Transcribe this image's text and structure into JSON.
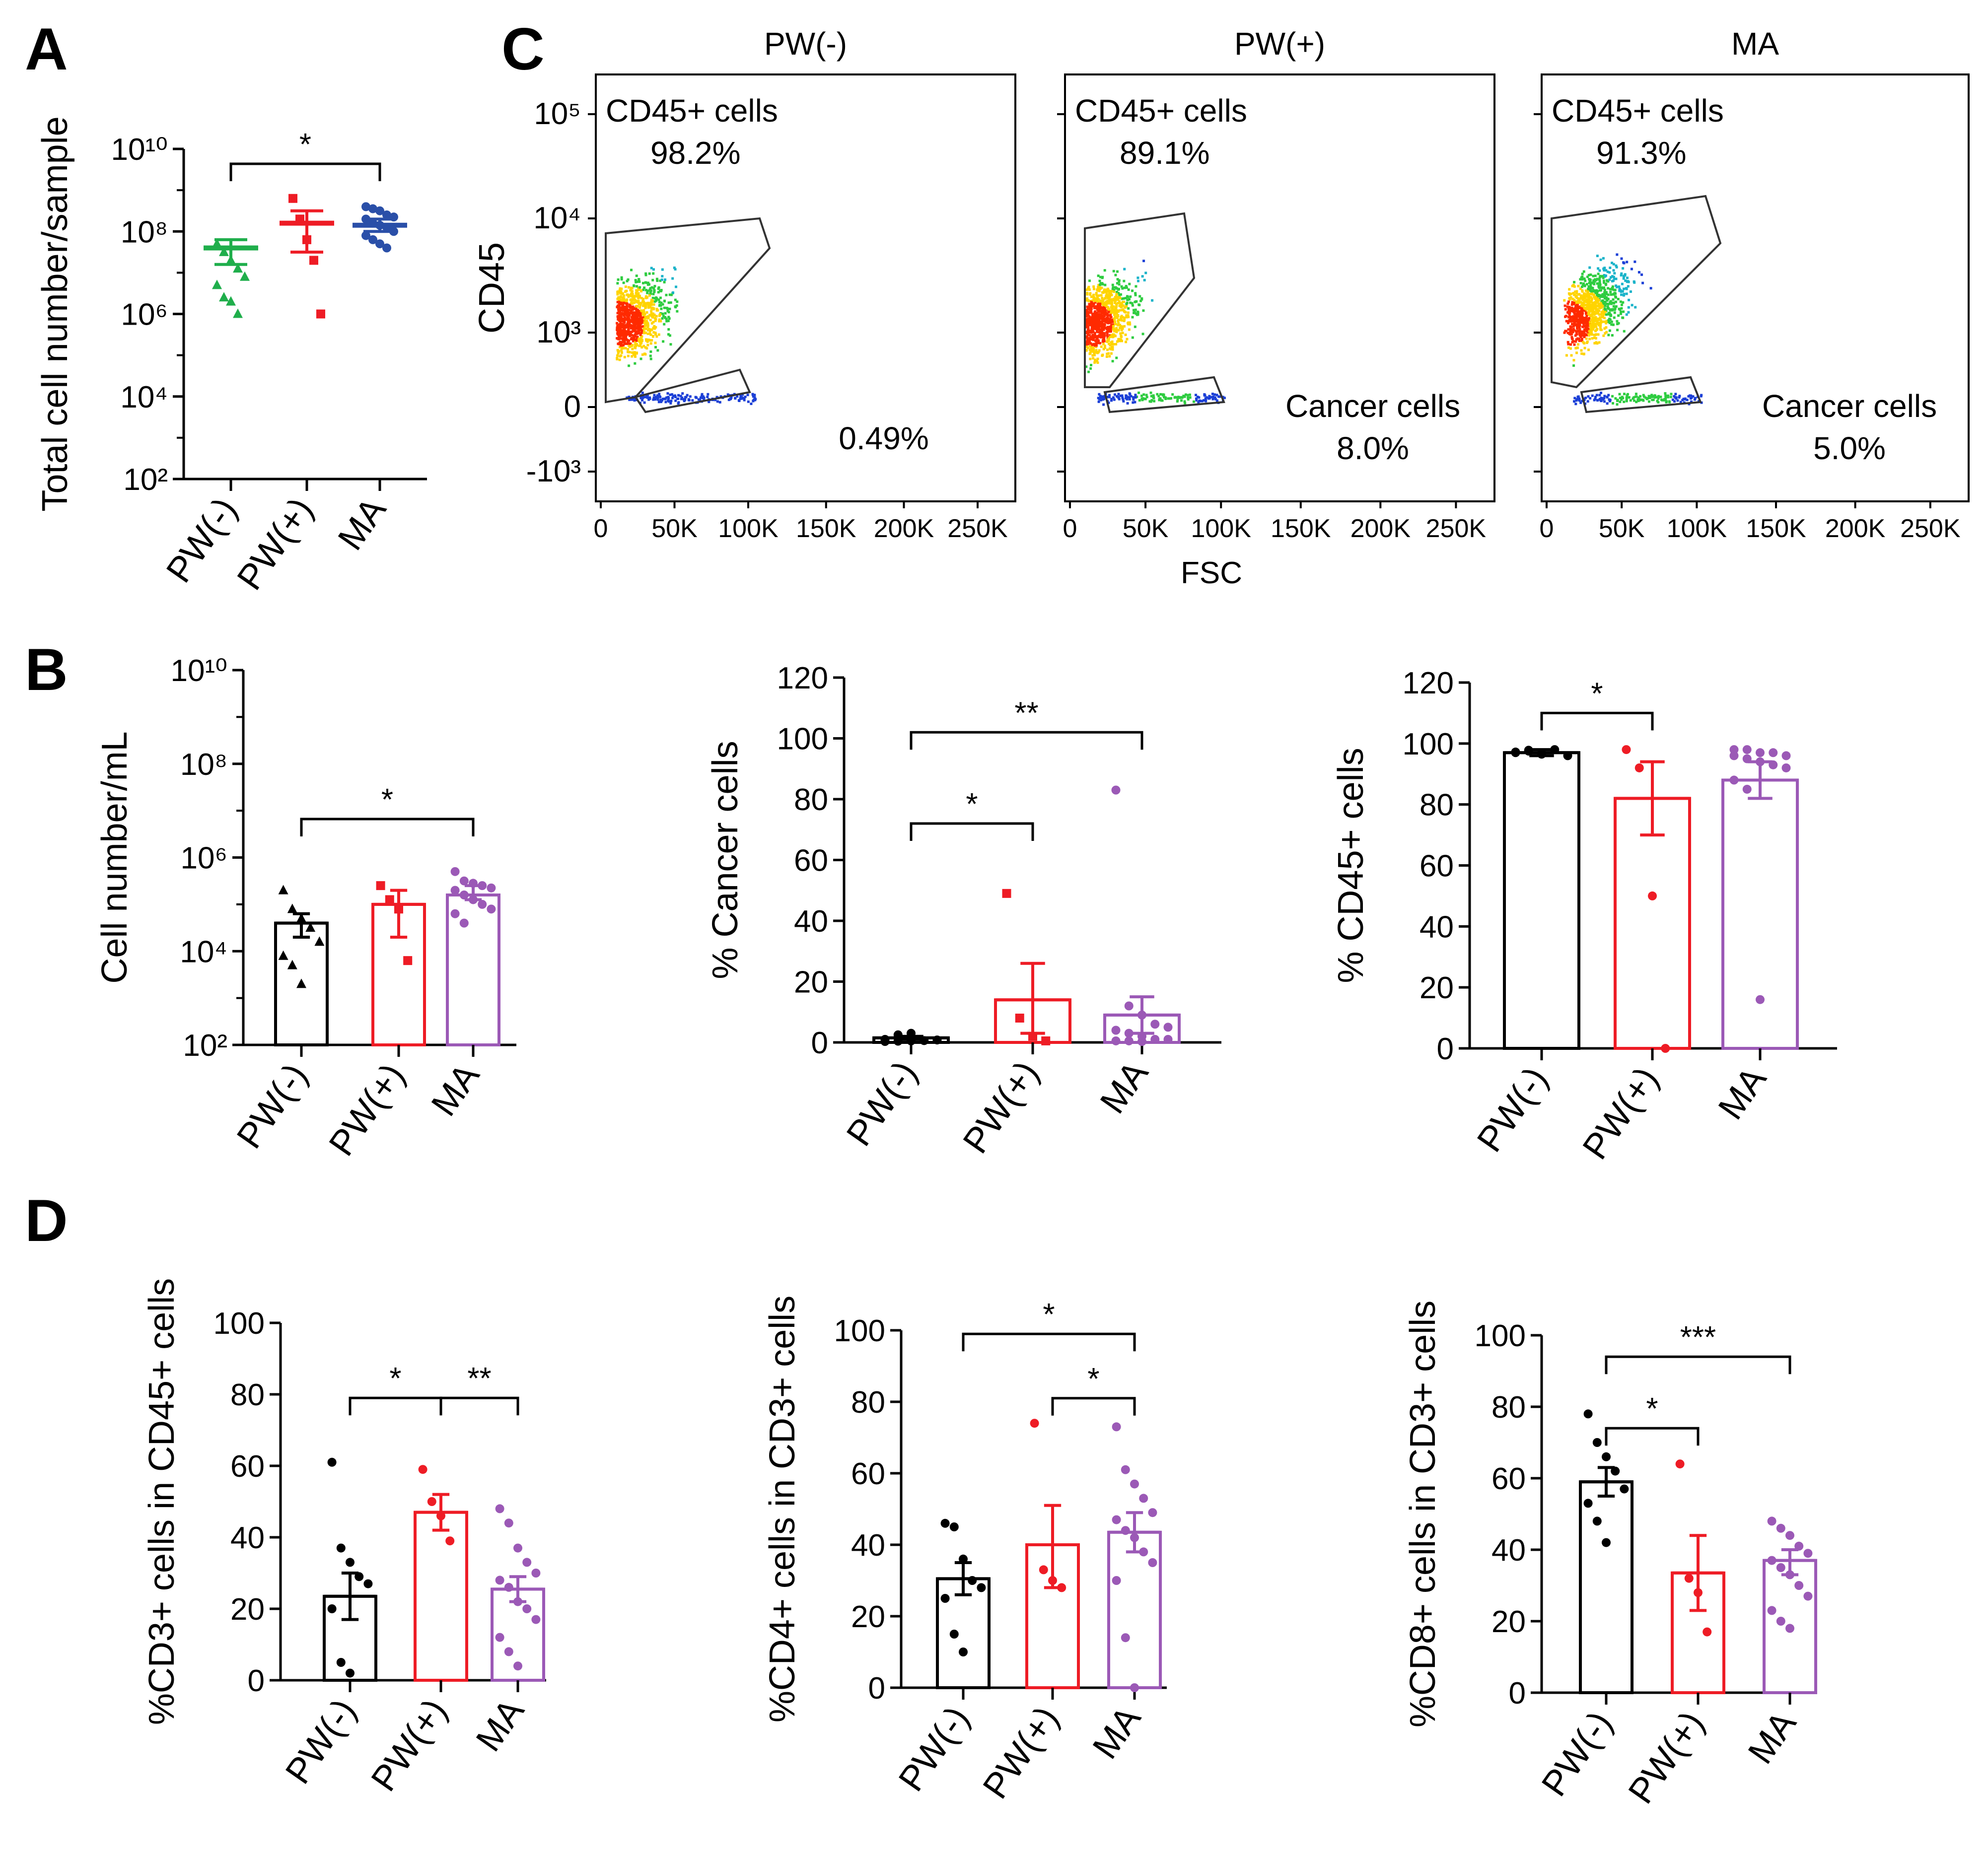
{
  "colors": {
    "PW(-)": "#000000",
    "PW(+)": "#ee1c25",
    "MA": "#9b59b6",
    "A_PW(-)": "#1fae4b",
    "A_MA": "#2a4fa8"
  },
  "panel_labels": [
    "A",
    "B",
    "C",
    "D"
  ],
  "chart_data": [
    {
      "id": "A",
      "type": "scatter",
      "scale": "log10",
      "ylabel": "Total cell number/sample",
      "ylim_exp": [
        2,
        10
      ],
      "yticks": [
        {
          "exp": 2,
          "label": "10²"
        },
        {
          "exp": 4,
          "label": "10⁴"
        },
        {
          "exp": 6,
          "label": "10⁶"
        },
        {
          "exp": 8,
          "label": "10⁸"
        },
        {
          "exp": 10,
          "label": "10¹⁰"
        }
      ],
      "categories": [
        "PW(-)",
        "PW(+)",
        "MA"
      ],
      "groups": [
        {
          "name": "PW(-)",
          "marker": "triangle",
          "mean_exp": 7.6,
          "sem_exp": [
            7.2,
            7.8
          ],
          "points_exp": [
            7.7,
            7.5,
            7.3,
            7.1,
            6.9,
            6.7,
            6.4,
            6.3,
            6.0
          ]
        },
        {
          "name": "PW(+)",
          "marker": "square",
          "mean_exp": 8.2,
          "sem_exp": [
            7.5,
            8.5
          ],
          "points_exp": [
            8.8,
            8.3,
            7.8,
            7.3,
            6.0
          ]
        },
        {
          "name": "MA",
          "marker": "circle",
          "mean_exp": 8.15,
          "sem_exp": [
            8.0,
            8.3
          ],
          "points_exp": [
            8.6,
            8.55,
            8.5,
            8.4,
            8.35,
            8.3,
            8.2,
            8.15,
            8.1,
            8.0,
            7.9,
            7.8,
            7.7,
            7.6
          ]
        }
      ],
      "significance": [
        {
          "from": "PW(-)",
          "to": "MA",
          "label": "*"
        }
      ]
    },
    {
      "id": "B1",
      "type": "bar",
      "scale": "log10",
      "ylabel": "Cell number/mL",
      "ylim_exp": [
        2,
        10
      ],
      "yticks": [
        {
          "exp": 2,
          "label": "10²"
        },
        {
          "exp": 4,
          "label": "10⁴"
        },
        {
          "exp": 6,
          "label": "10⁶"
        },
        {
          "exp": 8,
          "label": "10⁸"
        },
        {
          "exp": 10,
          "label": "10¹⁰"
        }
      ],
      "categories": [
        "PW(-)",
        "PW(+)",
        "MA"
      ],
      "groups": [
        {
          "name": "PW(-)",
          "marker": "triangle",
          "mean_exp": 4.6,
          "sem_exp": [
            4.3,
            4.8
          ],
          "points_exp": [
            5.3,
            4.9,
            4.7,
            4.5,
            4.2,
            3.9,
            3.7,
            3.3
          ]
        },
        {
          "name": "PW(+)",
          "marker": "square",
          "mean_exp": 5.0,
          "sem_exp": [
            4.3,
            5.3
          ],
          "points_exp": [
            5.4,
            5.1,
            4.9,
            3.8
          ]
        },
        {
          "name": "MA",
          "marker": "circle",
          "mean_exp": 5.2,
          "sem_exp": [
            5.1,
            5.4
          ],
          "points_exp": [
            5.7,
            5.5,
            5.45,
            5.4,
            5.35,
            5.3,
            5.2,
            5.1,
            5.0,
            4.9,
            4.8,
            4.6
          ]
        }
      ],
      "significance": [
        {
          "from": "PW(-)",
          "to": "MA",
          "label": "*"
        }
      ]
    },
    {
      "id": "B2",
      "type": "bar",
      "ylabel": "% Cancer cells",
      "ylim": [
        0,
        120
      ],
      "yticks": [
        0,
        20,
        40,
        60,
        80,
        100,
        120
      ],
      "categories": [
        "PW(-)",
        "PW(+)",
        "MA"
      ],
      "groups": [
        {
          "name": "PW(-)",
          "marker": "circle",
          "mean": 1.5,
          "sem": [
            1,
            2
          ],
          "points": [
            0.3,
            0.4,
            0.5,
            0.6,
            0.8,
            1.0,
            2.5,
            3.0
          ]
        },
        {
          "name": "PW(+)",
          "marker": "square",
          "mean": 14,
          "sem": [
            3,
            26
          ],
          "points": [
            49,
            8,
            2,
            0.5
          ]
        },
        {
          "name": "MA",
          "marker": "circle",
          "mean": 9,
          "sem": [
            3,
            15
          ],
          "points": [
            83,
            12,
            9,
            6,
            5,
            4,
            3,
            2,
            1,
            1,
            0.5,
            0.5,
            0.3
          ]
        }
      ],
      "significance": [
        {
          "from": "PW(-)",
          "to": "PW(+)",
          "label": "*"
        },
        {
          "from": "PW(-)",
          "to": "MA",
          "label": "**"
        }
      ]
    },
    {
      "id": "B3",
      "type": "bar",
      "ylabel": "% CD45+ cells",
      "ylim": [
        0,
        120
      ],
      "yticks": [
        0,
        20,
        40,
        60,
        80,
        100,
        120
      ],
      "categories": [
        "PW(-)",
        "PW(+)",
        "MA"
      ],
      "groups": [
        {
          "name": "PW(-)",
          "marker": "circle",
          "mean": 97,
          "sem": [
            96,
            98
          ],
          "points": [
            97,
            97.5,
            96.5,
            98,
            96,
            97.2,
            97.8,
            96.8
          ]
        },
        {
          "name": "PW(+)",
          "marker": "circle",
          "mean": 82,
          "sem": [
            70,
            94
          ],
          "points": [
            98,
            92,
            50,
            0
          ]
        },
        {
          "name": "MA",
          "marker": "circle",
          "mean": 88,
          "sem": [
            82,
            94
          ],
          "points": [
            98,
            98,
            97,
            97,
            96,
            96,
            95,
            94,
            93,
            92,
            88,
            85,
            16
          ]
        }
      ],
      "significance": [
        {
          "from": "PW(-)",
          "to": "PW(+)",
          "label": "*"
        }
      ]
    },
    {
      "id": "D1",
      "type": "bar",
      "ylabel": "%CD3+ cells in CD45+ cells",
      "ylim": [
        0,
        100
      ],
      "yticks": [
        0,
        20,
        40,
        60,
        80,
        100
      ],
      "categories": [
        "PW(-)",
        "PW(+)",
        "MA"
      ],
      "groups": [
        {
          "name": "PW(-)",
          "marker": "circle",
          "mean": 23.5,
          "sem": [
            17,
            30
          ],
          "points": [
            61,
            37,
            33,
            29,
            27,
            20,
            5,
            2
          ]
        },
        {
          "name": "PW(+)",
          "marker": "circle",
          "mean": 47,
          "sem": [
            42,
            52
          ],
          "points": [
            59,
            50,
            46,
            39
          ]
        },
        {
          "name": "MA",
          "marker": "circle",
          "mean": 25.5,
          "sem": [
            22,
            29
          ],
          "points": [
            48,
            44,
            37,
            33,
            30,
            28,
            26,
            22,
            20,
            17,
            12,
            8,
            4
          ]
        }
      ],
      "significance": [
        {
          "from": "PW(-)",
          "to": "PW(+)",
          "label": "*"
        },
        {
          "from": "PW(+)",
          "to": "MA",
          "label": "**"
        }
      ]
    },
    {
      "id": "D2",
      "type": "bar",
      "ylabel": "%CD4+ cells in CD3+ cells",
      "ylim": [
        0,
        100
      ],
      "yticks": [
        0,
        20,
        40,
        60,
        80,
        100
      ],
      "categories": [
        "PW(-)",
        "PW(+)",
        "MA"
      ],
      "groups": [
        {
          "name": "PW(-)",
          "marker": "circle",
          "mean": 30.5,
          "sem": [
            26,
            35
          ],
          "points": [
            46,
            45,
            36,
            30,
            28,
            25,
            15,
            10
          ]
        },
        {
          "name": "PW(+)",
          "marker": "circle",
          "mean": 40,
          "sem": [
            28,
            51
          ],
          "points": [
            74,
            33,
            30,
            28
          ]
        },
        {
          "name": "MA",
          "marker": "circle",
          "mean": 43.5,
          "sem": [
            38,
            49
          ],
          "points": [
            73,
            61,
            57,
            53,
            49,
            47,
            44,
            42,
            38,
            35,
            30,
            14,
            0
          ]
        }
      ],
      "significance": [
        {
          "from": "PW(-)",
          "to": "MA",
          "label": "*"
        },
        {
          "from": "PW(+)",
          "to": "MA",
          "label": "*"
        }
      ]
    },
    {
      "id": "D3",
      "type": "bar",
      "ylabel": "%CD8+ cells in CD3+ cells",
      "ylim": [
        0,
        100
      ],
      "yticks": [
        0,
        20,
        40,
        60,
        80,
        100
      ],
      "categories": [
        "PW(-)",
        "PW(+)",
        "MA"
      ],
      "groups": [
        {
          "name": "PW(-)",
          "marker": "circle",
          "mean": 59,
          "sem": [
            55,
            63
          ],
          "points": [
            78,
            70,
            66,
            62,
            57,
            53,
            48,
            42
          ]
        },
        {
          "name": "PW(+)",
          "marker": "circle",
          "mean": 33.5,
          "sem": [
            23,
            44
          ],
          "points": [
            64,
            32,
            28,
            17
          ]
        },
        {
          "name": "MA",
          "marker": "circle",
          "mean": 37,
          "sem": [
            33,
            40
          ],
          "points": [
            48,
            46,
            44,
            41,
            39,
            37,
            35,
            33,
            30,
            27,
            23,
            20,
            18
          ]
        }
      ],
      "significance": [
        {
          "from": "PW(-)",
          "to": "PW(+)",
          "label": "*"
        },
        {
          "from": "PW(-)",
          "to": "MA",
          "label": "***"
        }
      ]
    }
  ],
  "flow": {
    "ylabel": "CD45",
    "xlabel": "FSC",
    "xticks": [
      "0",
      "50K",
      "100K",
      "150K",
      "200K",
      "250K"
    ],
    "yticks": [
      "10⁵",
      "10⁴",
      "10³",
      "0",
      "-10³"
    ],
    "plots": [
      {
        "title": "PW(-)",
        "gate1_label": "CD45+ cells",
        "gate1_value": "98.2%",
        "gate2_label": "",
        "gate2_value": "0.49%"
      },
      {
        "title": "PW(+)",
        "gate1_label": "CD45+ cells",
        "gate1_value": "89.1%",
        "gate2_label": "Cancer cells",
        "gate2_value": "8.0%"
      },
      {
        "title": "MA",
        "gate1_label": "CD45+ cells",
        "gate1_value": "91.3%",
        "gate2_label": "Cancer cells",
        "gate2_value": "5.0%"
      }
    ]
  }
}
